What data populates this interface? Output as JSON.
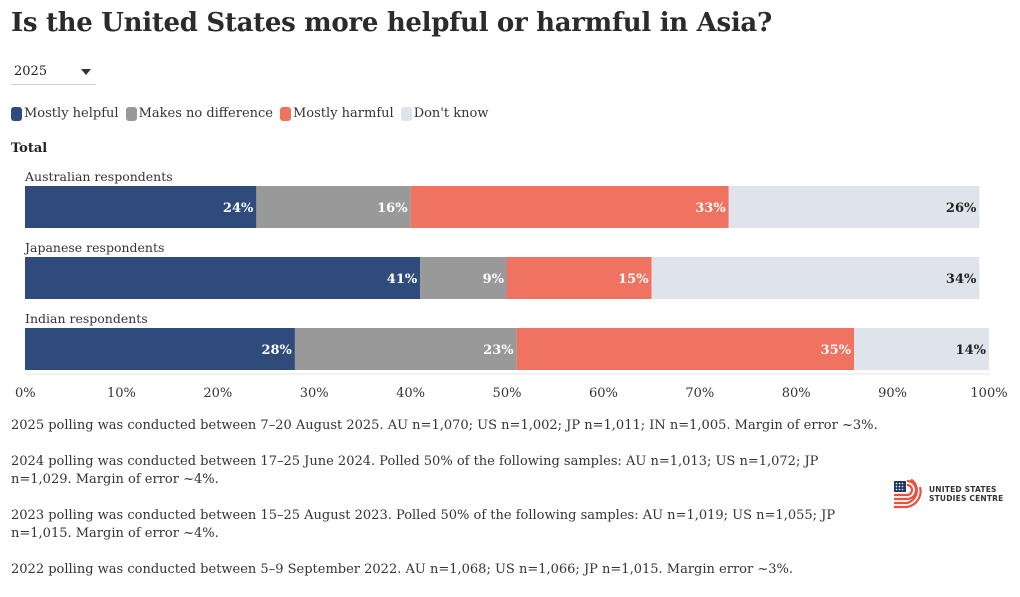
{
  "title": "Is the United States more helpful or harmful in Asia?",
  "year_select": {
    "value": "2025"
  },
  "legend": [
    {
      "label": "Mostly helpful",
      "color": "#2f4b7c"
    },
    {
      "label": "Makes no difference",
      "color": "#999999"
    },
    {
      "label": "Mostly harmful",
      "color": "#f07362"
    },
    {
      "label": "Don't know",
      "color": "#dfe3ec"
    }
  ],
  "group_title": "Total",
  "chart_data": {
    "type": "bar",
    "orientation": "horizontal",
    "stacked": true,
    "title": "Is the United States more helpful or harmful in Asia?",
    "categories": [
      "Australian respondents",
      "Japanese respondents",
      "Indian respondents"
    ],
    "series": [
      {
        "name": "Mostly helpful",
        "color": "#2f4b7c",
        "label_color": "#ffffff",
        "values": [
          24,
          41,
          28
        ]
      },
      {
        "name": "Makes no difference",
        "color": "#999999",
        "label_color": "#ffffff",
        "values": [
          16,
          9,
          23
        ]
      },
      {
        "name": "Mostly harmful",
        "color": "#f07362",
        "label_color": "#ffffff",
        "values": [
          33,
          15,
          35
        ]
      },
      {
        "name": "Don't know",
        "color": "#dfe3ec",
        "label_color": "#222222",
        "values": [
          26,
          34,
          14
        ]
      }
    ],
    "xlim": [
      0,
      100
    ],
    "xticks": [
      "0%",
      "10%",
      "20%",
      "30%",
      "40%",
      "50%",
      "60%",
      "70%",
      "80%",
      "90%",
      "100%"
    ],
    "value_suffix": "%",
    "xlabel": "",
    "ylabel": ""
  },
  "notes": [
    "2025 polling was conducted between 7–20 August 2025. AU n=1,070; US n=1,002; JP n=1,011; IN n=1,005. Margin of error ~3%.",
    "2024 polling was conducted between 17–25 June 2024. Polled 50% of the following samples: AU n=1,013; US n=1,072; JP n=1,029. Margin of error ~4%.",
    "2023 polling was conducted between 15–25 August 2023. Polled 50% of the following samples: AU n=1,019; US n=1,055; JP n=1,015. Margin of error ~4%.",
    "2022 polling was conducted between 5–9 September 2022. AU n=1,068; US n=1,066; JP n=1,015. Margin error ~3%."
  ],
  "logo": {
    "line1": "UNITED STATES",
    "line2": "STUDIES CENTRE"
  }
}
